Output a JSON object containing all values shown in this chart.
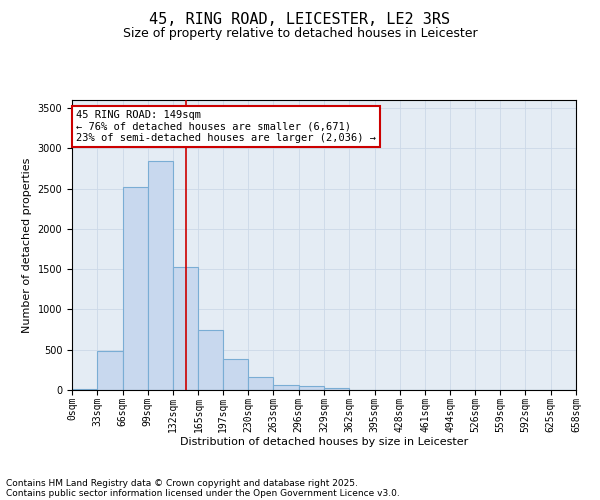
{
  "title1": "45, RING ROAD, LEICESTER, LE2 3RS",
  "title2": "Size of property relative to detached houses in Leicester",
  "xlabel": "Distribution of detached houses by size in Leicester",
  "ylabel": "Number of detached properties",
  "bar_color": "#c8d8ee",
  "bar_edge_color": "#7aadd4",
  "vline_color": "#cc0000",
  "vline_x": 149,
  "bin_edges": [
    0,
    33,
    66,
    99,
    132,
    165,
    197,
    230,
    263,
    296,
    329,
    362,
    395,
    428,
    461,
    494,
    526,
    559,
    592,
    625,
    658
  ],
  "bar_heights": [
    10,
    480,
    2520,
    2840,
    1530,
    740,
    390,
    160,
    65,
    50,
    30,
    0,
    0,
    0,
    0,
    0,
    0,
    0,
    0,
    0
  ],
  "tick_labels": [
    "0sqm",
    "33sqm",
    "66sqm",
    "99sqm",
    "132sqm",
    "165sqm",
    "197sqm",
    "230sqm",
    "263sqm",
    "296sqm",
    "329sqm",
    "362sqm",
    "395sqm",
    "428sqm",
    "461sqm",
    "494sqm",
    "526sqm",
    "559sqm",
    "592sqm",
    "625sqm",
    "658sqm"
  ],
  "ylim": [
    0,
    3600
  ],
  "yticks": [
    0,
    500,
    1000,
    1500,
    2000,
    2500,
    3000,
    3500
  ],
  "annotation_title": "45 RING ROAD: 149sqm",
  "annotation_line1": "← 76% of detached houses are smaller (6,671)",
  "annotation_line2": "23% of semi-detached houses are larger (2,036) →",
  "annotation_box_color": "#ffffff",
  "annotation_box_edge": "#cc0000",
  "grid_color": "#ccd8e8",
  "bg_color": "#e4ecf4",
  "footer1": "Contains HM Land Registry data © Crown copyright and database right 2025.",
  "footer2": "Contains public sector information licensed under the Open Government Licence v3.0.",
  "title_fontsize": 11,
  "subtitle_fontsize": 9,
  "axis_label_fontsize": 8,
  "tick_fontsize": 7,
  "annotation_fontsize": 7.5,
  "footer_fontsize": 6.5
}
